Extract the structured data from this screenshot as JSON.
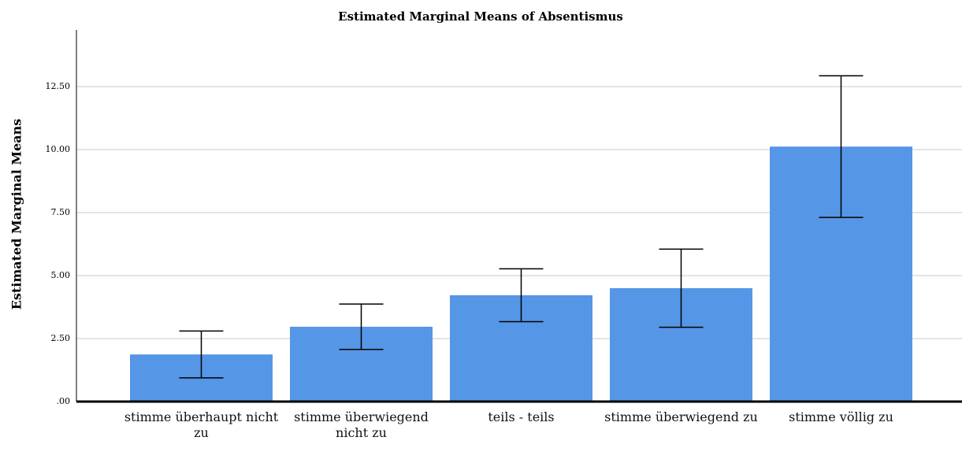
{
  "chart_data": {
    "type": "bar",
    "title": "Estimated Marginal Means of Absentismus",
    "y_label": "Estimated Marginal Means",
    "categories": [
      "stimme überhaupt nicht zu",
      "stimme überwiegend nicht zu",
      "teils - teils",
      "stimme überwiegend zu",
      "stimme völlig zu"
    ],
    "values": [
      1.87,
      2.97,
      4.22,
      4.5,
      10.12
    ],
    "errors": [
      0.93,
      0.9,
      1.05,
      1.55,
      2.81
    ],
    "color": "#5596e6",
    "ylim": [
      0,
      14.75
    ],
    "yticks": [
      {
        "value": 0,
        "label": ".00"
      },
      {
        "value": 2.5,
        "label": "2.50"
      },
      {
        "value": 5,
        "label": "5.00"
      },
      {
        "value": 7.5,
        "label": "7.50"
      },
      {
        "value": 10,
        "label": "10.00"
      },
      {
        "value": 12.5,
        "label": "12.50"
      }
    ],
    "grid": true
  }
}
